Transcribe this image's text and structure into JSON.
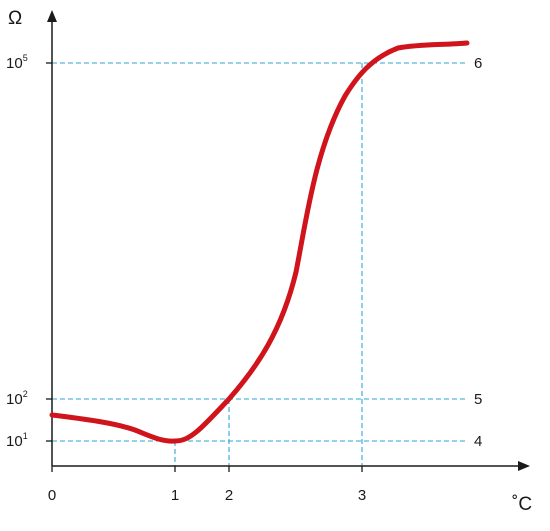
{
  "chart_data": {
    "type": "line",
    "x_axis_label": "˚C",
    "y_axis_label": "Ω",
    "y_scale": "log",
    "x_ticks": [
      {
        "value": 0,
        "label": "0"
      },
      {
        "value": 1,
        "label": "1"
      },
      {
        "value": 2,
        "label": "2"
      },
      {
        "value": 3,
        "label": "3"
      }
    ],
    "y_ticks": [
      {
        "value": 1,
        "base": "10",
        "exponent": "1"
      },
      {
        "value": 2,
        "base": "10",
        "exponent": "2"
      },
      {
        "value": 5,
        "base": "10",
        "exponent": "5"
      }
    ],
    "reference_lines": [
      {
        "label": "4",
        "y": 1,
        "x": 1
      },
      {
        "label": "5",
        "y": 2,
        "x": 2
      },
      {
        "label": "6",
        "y": 5,
        "x": 3
      }
    ],
    "curve_color": "#d0141c",
    "guide_color": "#2aa7d6",
    "xlim": [
      0,
      5.1
    ],
    "ylim": [
      0,
      5.7
    ]
  }
}
